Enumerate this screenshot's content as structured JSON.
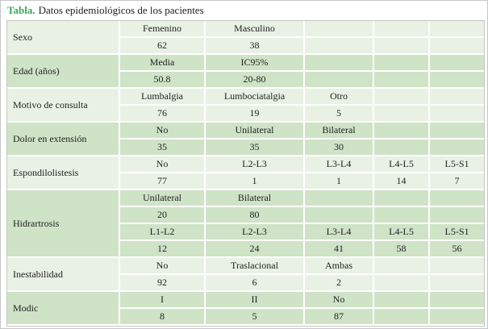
{
  "title": {
    "label": "Tabla.",
    "text": "Datos epidemiológicos de los pacientes"
  },
  "colors": {
    "light_row": "#e9f1e4",
    "dark_row": "#cfe3c7",
    "grid_line": "#ffffff",
    "frame_border": "#c6c6c6",
    "title_accent": "#3aa657"
  },
  "table": {
    "columns": 6,
    "groups": [
      {
        "label": "Sexo",
        "shade": "light",
        "rows": [
          [
            "Femenino",
            "Masculino",
            "",
            "",
            ""
          ],
          [
            "62",
            "38",
            "",
            "",
            ""
          ]
        ]
      },
      {
        "label": "Edad (años)",
        "shade": "dark",
        "rows": [
          [
            "Media",
            "IC95%",
            "",
            "",
            ""
          ],
          [
            "50.8",
            "20-80",
            "",
            "",
            ""
          ]
        ]
      },
      {
        "label": "Motivo de consulta",
        "shade": "light",
        "rows": [
          [
            "Lumbalgia",
            "Lumbociatalgia",
            "Otro",
            "",
            ""
          ],
          [
            "76",
            "19",
            "5",
            "",
            ""
          ]
        ]
      },
      {
        "label": "Dolor en extensión",
        "shade": "dark",
        "rows": [
          [
            "No",
            "Unilateral",
            "Bilateral",
            "",
            ""
          ],
          [
            "35",
            "35",
            "30",
            "",
            ""
          ]
        ]
      },
      {
        "label": "Espondilolistesis",
        "shade": "light",
        "rows": [
          [
            "No",
            "L2-L3",
            "L3-L4",
            "L4-L5",
            "L5-S1"
          ],
          [
            "77",
            "1",
            "1",
            "14",
            "7"
          ]
        ]
      },
      {
        "label": "Hidrartrosis",
        "shade": "dark",
        "rows": [
          [
            "Unilateral",
            "Bilateral",
            "",
            "",
            ""
          ],
          [
            "20",
            "80",
            "",
            "",
            ""
          ],
          [
            "L1-L2",
            "L2-L3",
            "L3-L4",
            "L4-L5",
            "L5-S1"
          ],
          [
            "12",
            "24",
            "41",
            "58",
            "56"
          ]
        ]
      },
      {
        "label": "Inestabilidad",
        "shade": "light",
        "rows": [
          [
            "No",
            "Traslacional",
            "Ambas",
            "",
            ""
          ],
          [
            "92",
            "6",
            "2",
            "",
            ""
          ]
        ]
      },
      {
        "label": "Modic",
        "shade": "dark",
        "rows": [
          [
            "I",
            "II",
            "No",
            "",
            ""
          ],
          [
            "8",
            "5",
            "87",
            "",
            ""
          ]
        ]
      }
    ]
  }
}
